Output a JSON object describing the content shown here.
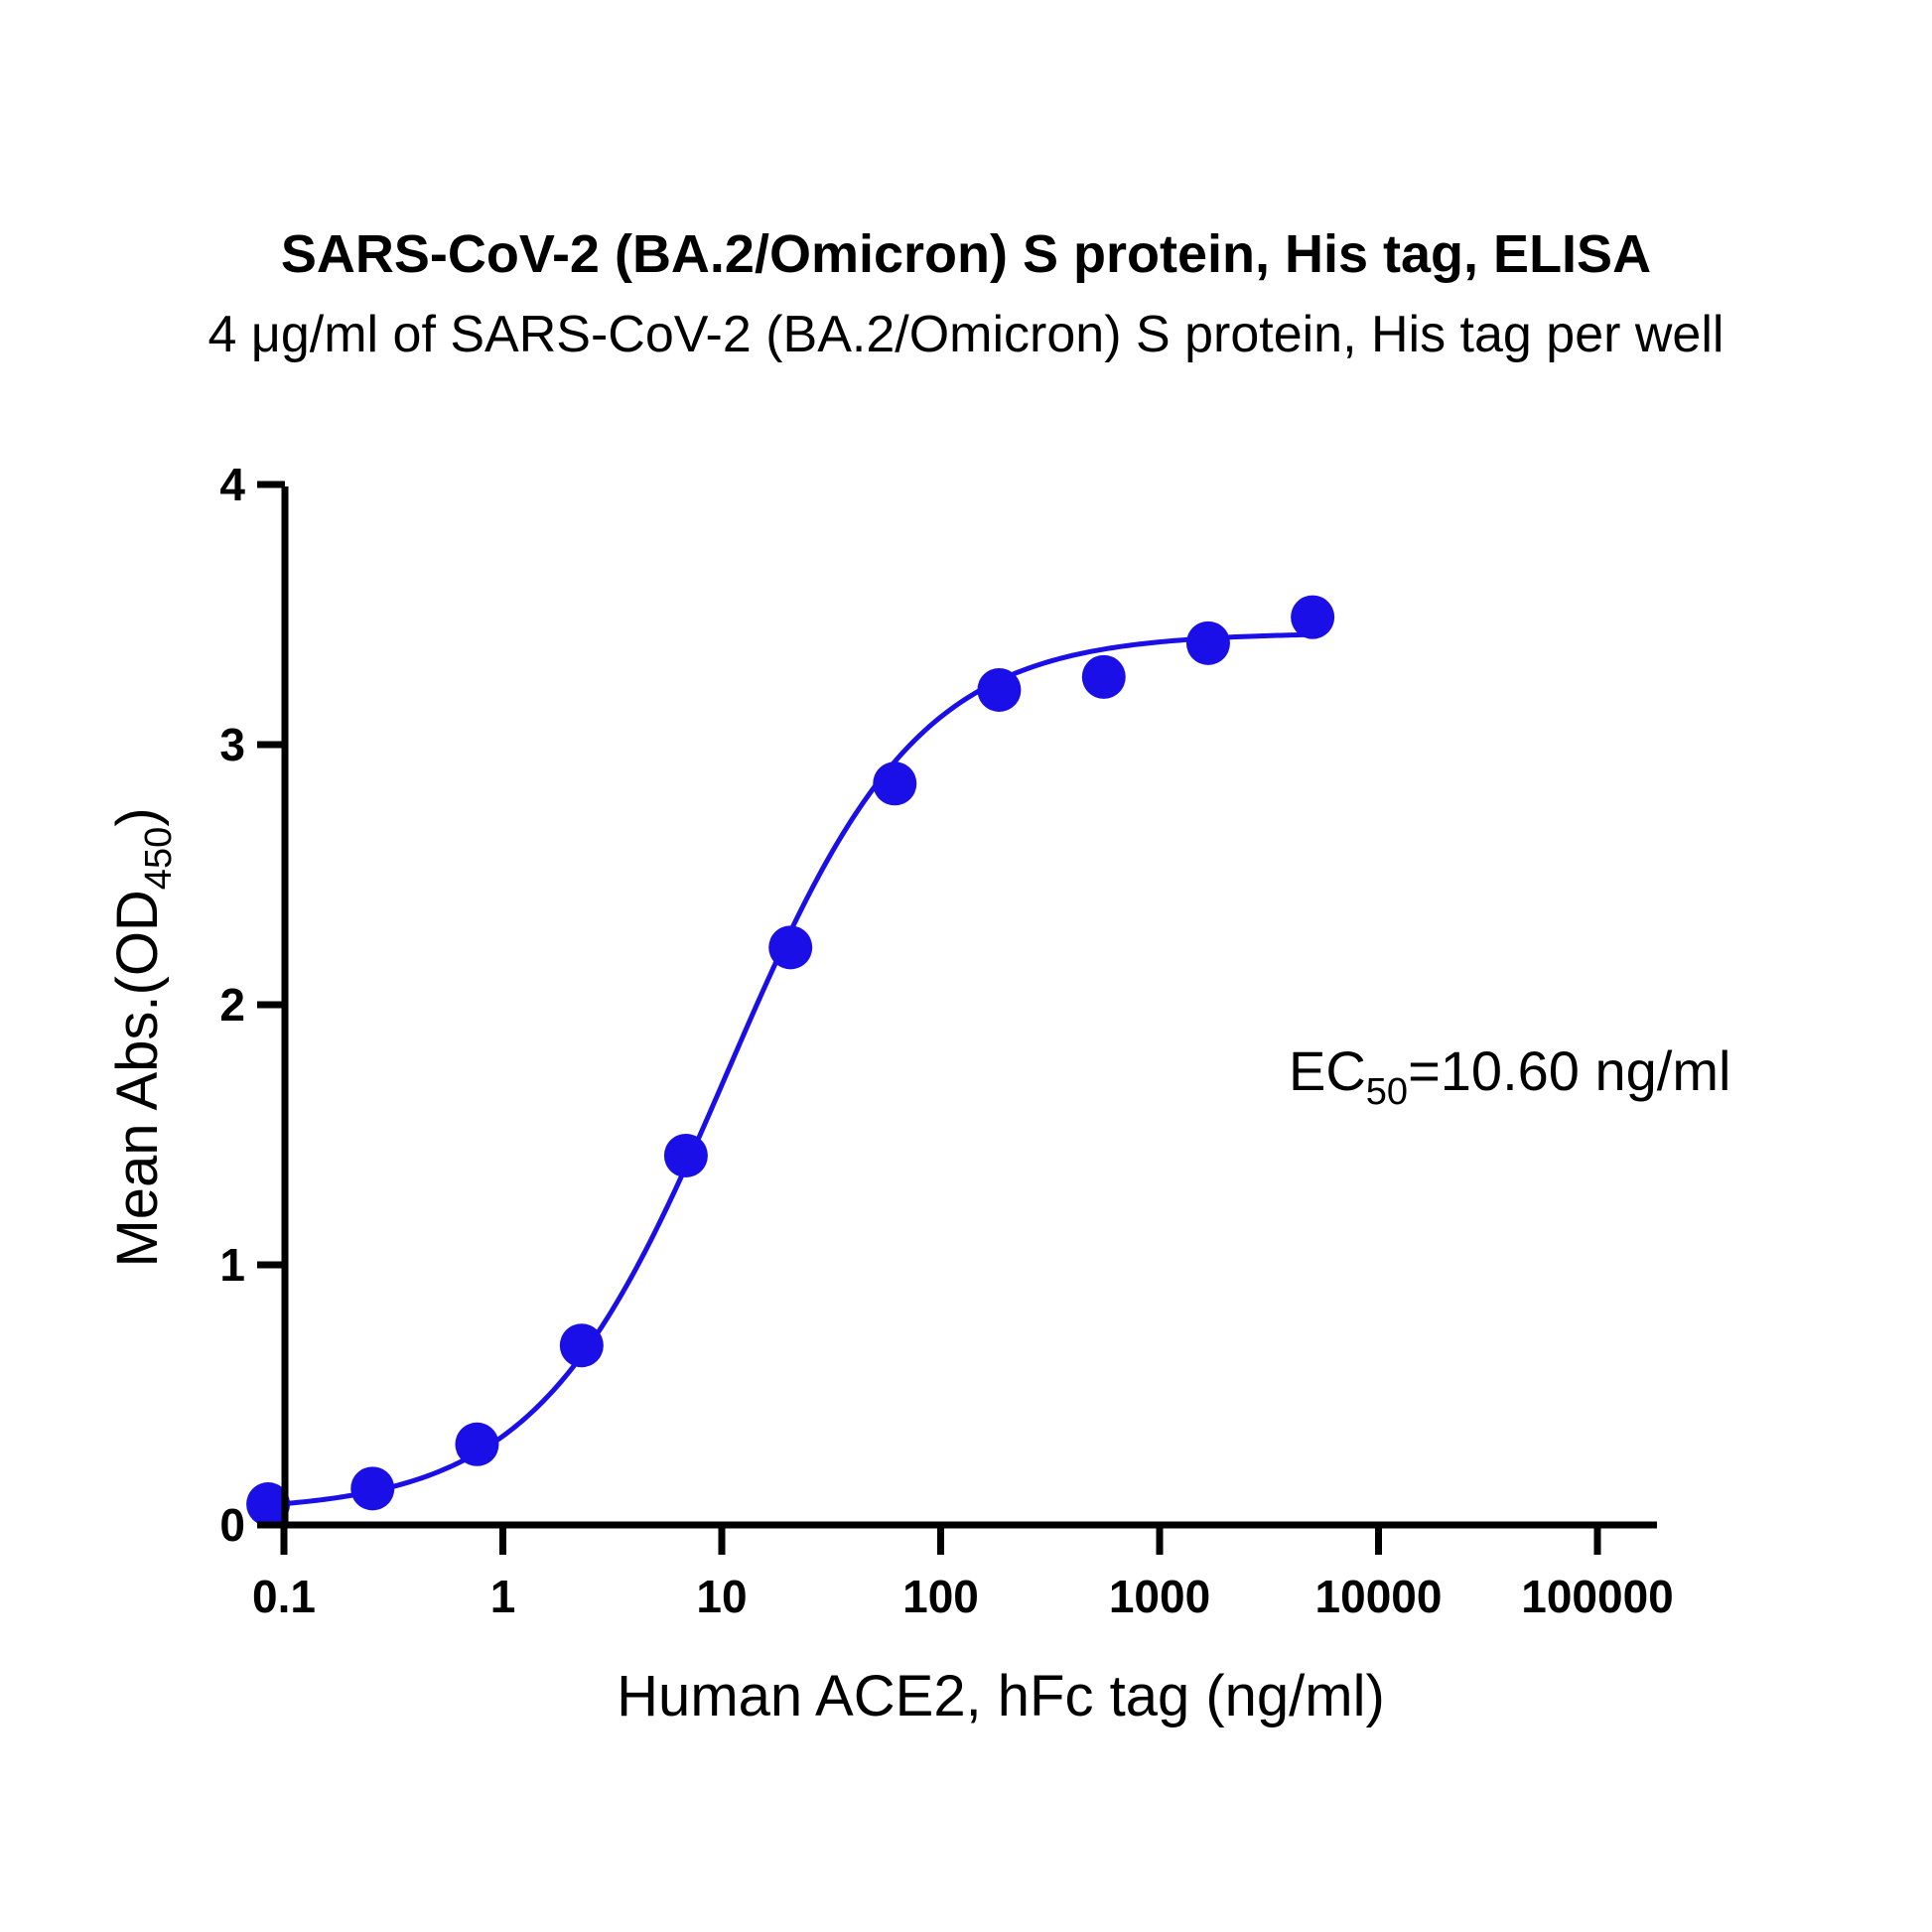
{
  "chart_data": {
    "type": "scatter",
    "title": "SARS-CoV-2 (BA.2/Omicron) S protein, His tag, ELISA",
    "subtitle": "4 μg/ml of SARS-CoV-2 (BA.2/Omicron) S protein, His tag per well",
    "xlabel": "Human ACE2, hFc tag (ng/ml)",
    "ylabel_main": "Mean Abs.(OD",
    "ylabel_sub": "450",
    "ylabel_close": ")",
    "x_scale": "log10",
    "xlim": [
      0.1,
      100000
    ],
    "ylim": [
      0,
      4
    ],
    "x_ticks": [
      0.1,
      1,
      10,
      100,
      1000,
      10000,
      100000
    ],
    "x_tick_labels": [
      "0.1",
      "1",
      "10",
      "100",
      "1000",
      "10000",
      "100000"
    ],
    "y_ticks": [
      0,
      1,
      2,
      3,
      4
    ],
    "y_tick_labels": [
      "0",
      "1",
      "2",
      "3",
      "4"
    ],
    "series": [
      {
        "x": [
          0.0847,
          0.254,
          0.762,
          2.29,
          6.86,
          20.6,
          61.7,
          185,
          556,
          1667,
          5000
        ],
        "y": [
          0.08,
          0.14,
          0.31,
          0.69,
          1.42,
          2.22,
          2.85,
          3.21,
          3.26,
          3.39,
          3.49
        ],
        "color": "#1a0fe6"
      }
    ],
    "fit": {
      "model": "4PL",
      "bottom": 0.05,
      "top": 3.43,
      "ec50": 10.6,
      "hill": 1.0
    },
    "annotation": {
      "prefix": "EC",
      "sub": "50",
      "suffix": "=10.60 ng/ml"
    },
    "grid": false,
    "legend": "none"
  }
}
